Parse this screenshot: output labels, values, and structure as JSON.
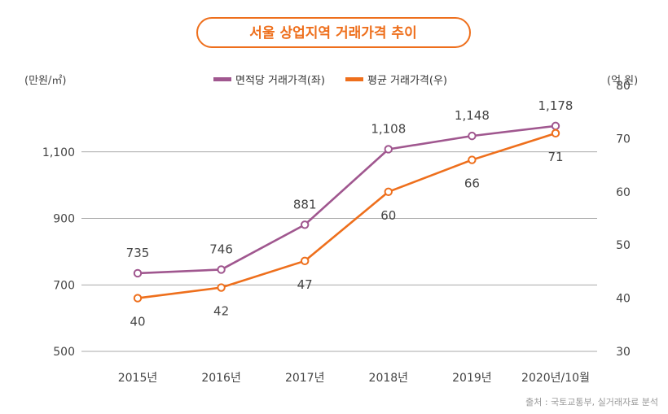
{
  "chart_data": {
    "type": "line",
    "title": "서울 상업지역 거래가격 추이",
    "left_unit": "(만원/㎡)",
    "right_unit": "(억 원)",
    "categories": [
      "2015년",
      "2016년",
      "2017년",
      "2018년",
      "2019년",
      "2020년/10월"
    ],
    "left_axis": {
      "range": [
        500,
        1300
      ],
      "ticks": [
        500,
        700,
        900,
        1100
      ]
    },
    "right_axis": {
      "range": [
        30,
        80
      ],
      "ticks": [
        30,
        40,
        50,
        60,
        70,
        80
      ]
    },
    "series": [
      {
        "name": "면적당 거래가격(좌)",
        "axis": "left",
        "color": "#A0578F",
        "values": [
          735,
          746,
          881,
          1108,
          1148,
          1178
        ],
        "labels": [
          "735",
          "746",
          "881",
          "1,108",
          "1,148",
          "1,178"
        ]
      },
      {
        "name": "평균 거래가격(우)",
        "axis": "right",
        "color": "#EE6F1C",
        "values": [
          40,
          42,
          47,
          60,
          66,
          71
        ],
        "labels": [
          "40",
          "42",
          "47",
          "60",
          "66",
          "71"
        ]
      }
    ],
    "gridlines": [
      700,
      900,
      1100
    ],
    "legend_position": "top-center",
    "source": "출처 : 국토교통부, 실거래자료 분석"
  },
  "colors": {
    "title_border": "#EE6F1C",
    "title_text": "#EE6F1C",
    "grid": "#8c8c8c",
    "tick_text": "#444444"
  }
}
